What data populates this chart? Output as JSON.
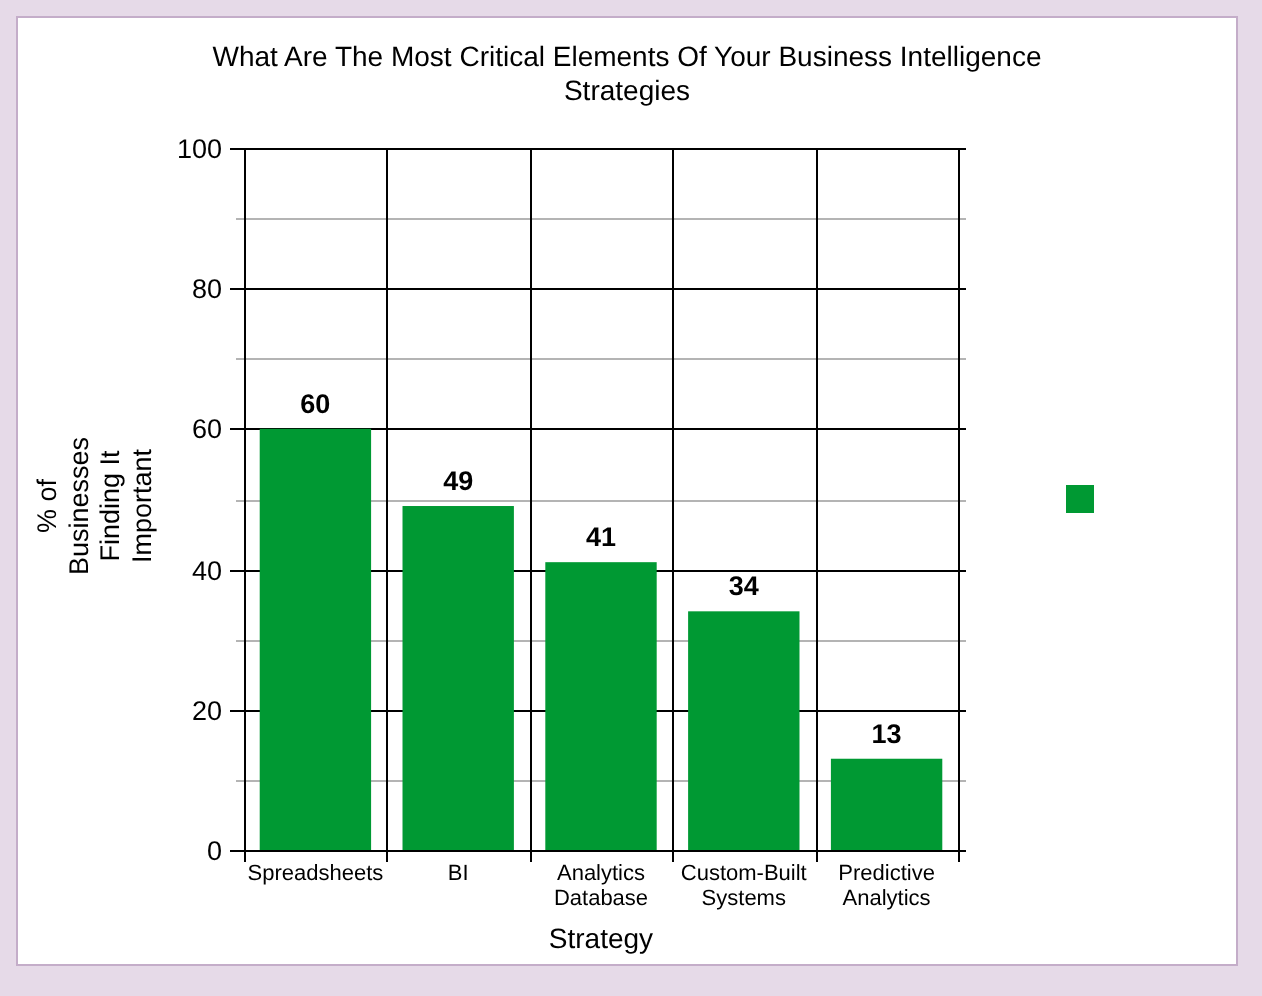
{
  "chart_data": {
    "type": "bar",
    "title": "What Are The Most Critical Elements Of Your Business Intelligence Strategies",
    "xlabel": "Strategy",
    "ylabel": "% of Businesses Finding It Important",
    "categories": [
      "Spreadsheets",
      "BI",
      "Analytics Database",
      "Custom-Built Systems",
      "Predictive Analytics"
    ],
    "values": [
      60,
      49,
      41,
      34,
      13
    ],
    "color": "#009933",
    "ylim": [
      0,
      100
    ],
    "yticks": [
      0,
      {
        "value": 10,
        "label": null
      },
      20,
      {
        "value": 30,
        "label": null
      },
      40,
      {
        "value": 50,
        "label": null
      },
      60,
      {
        "value": 70,
        "label": null
      },
      80,
      {
        "value": 90,
        "label": null
      },
      100
    ],
    "grid": true,
    "data_labels": true
  }
}
